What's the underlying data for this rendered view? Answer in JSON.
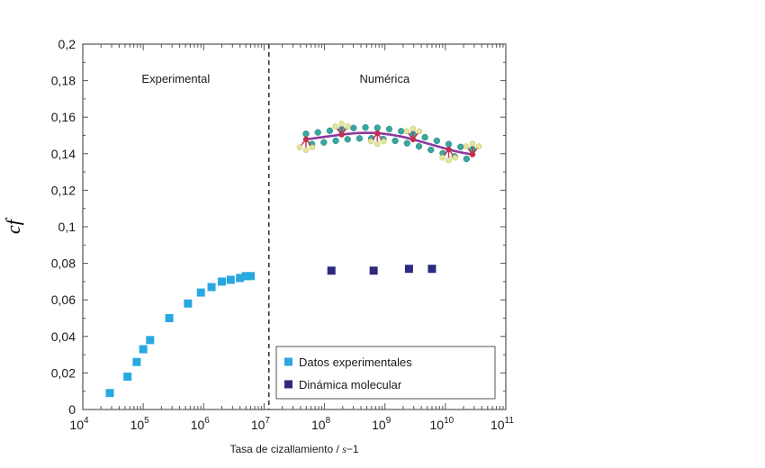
{
  "chart_data": {
    "type": "scatter",
    "x_scale": "log",
    "xlim": [
      10000,
      100000000000
    ],
    "ylim": [
      0,
      0.2
    ],
    "x_ticks": [
      {
        "base": "10",
        "exp": "4"
      },
      {
        "base": "10",
        "exp": "5"
      },
      {
        "base": "10",
        "exp": "6"
      },
      {
        "base": "10",
        "exp": "7"
      },
      {
        "base": "10",
        "exp": "8"
      },
      {
        "base": "10",
        "exp": "9"
      },
      {
        "base": "10",
        "exp": "10"
      },
      {
        "base": "10",
        "exp": "11"
      }
    ],
    "y_ticks": [
      "0",
      "0,02",
      "0,04",
      "0,06",
      "0,08",
      "0,1",
      "0,12",
      "0,14",
      "0,16",
      "0,18",
      "0,2"
    ],
    "xlabel": {
      "main": "Tasa de cizallamiento / ",
      "unit": "s",
      "exp": "−1"
    },
    "ylabel": "cf",
    "divider_x": 12000000,
    "region_labels": [
      "Experimental",
      "Numérica"
    ],
    "legend_position": "bottom-right",
    "series": [
      {
        "name": "Datos experimentales",
        "color": "#29a8e0",
        "x": [
          28000,
          55000,
          78000,
          100000,
          130000,
          270000,
          550000,
          900000,
          1350000,
          2000000,
          2800000,
          4000000,
          5000000,
          6000000
        ],
        "y": [
          0.009,
          0.018,
          0.026,
          0.033,
          0.038,
          0.05,
          0.058,
          0.064,
          0.067,
          0.07,
          0.071,
          0.072,
          0.073,
          0.073
        ]
      },
      {
        "name": "Dinámica molecular",
        "color": "#2e2a7f",
        "x": [
          130000000,
          650000000,
          2500000000,
          6000000000
        ],
        "y": [
          0.076,
          0.076,
          0.077,
          0.077
        ]
      }
    ]
  },
  "molecule": {
    "backbone_color": "#8e3a9e",
    "carbon_color": "#c0304f",
    "bead_color": "#3aa6a0",
    "hydrogen_color": "#e6e69a"
  }
}
